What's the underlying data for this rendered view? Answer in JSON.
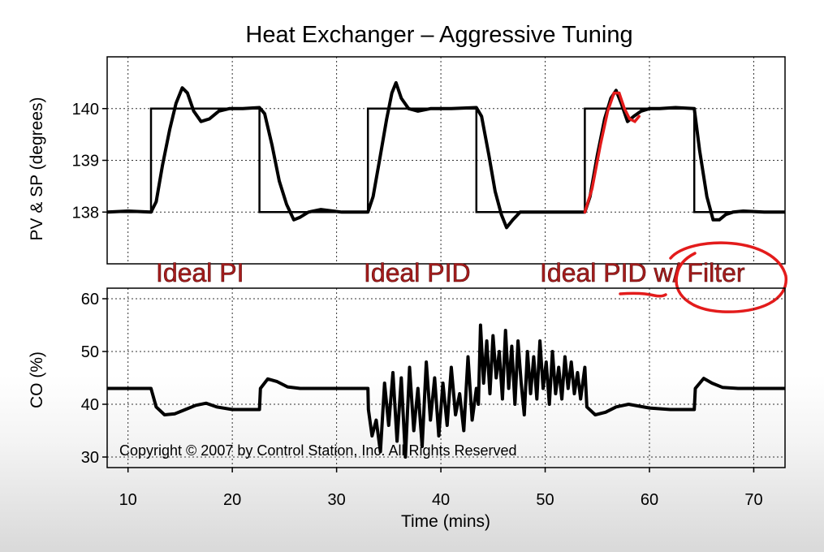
{
  "chart_data": {
    "type": "line",
    "title": "Heat Exchanger – Aggressive Tuning",
    "xlabel": "Time (mins)",
    "xlim": [
      8,
      73
    ],
    "xticks": [
      10,
      20,
      30,
      40,
      50,
      60,
      70
    ],
    "grid": true,
    "copyright": "Copyright © 2007 by Control Station, Inc. All Rights Reserved",
    "annotations": [
      "Ideal PI",
      "Ideal PID",
      "Ideal PID w/ Filter"
    ],
    "annotation_color": "#a61d1d",
    "highlight_color": "#e31b1b",
    "panels": [
      {
        "ylabel": "PV & SP (degrees)",
        "ylim": [
          137.0,
          141.0
        ],
        "yticks": [
          138,
          139,
          140
        ],
        "series": [
          {
            "kind": "setpoint",
            "x": [
              8,
              12.2,
              12.2,
              22.6,
              22.6,
              33.0,
              33.0,
              43.4,
              43.4,
              53.8,
              53.8,
              64.3,
              64.3,
              73
            ],
            "y": [
              138,
              138,
              140,
              140,
              138,
              138,
              140,
              140,
              138,
              138,
              140,
              140,
              138,
              138
            ]
          },
          {
            "kind": "process-variable",
            "x": [
              8,
              10,
              12.2,
              12.7,
              13.3,
              14.0,
              14.6,
              15.2,
              15.7,
              16.3,
              17.0,
              17.8,
              18.7,
              19.7,
              21.0,
              22.6,
              23.1,
              23.8,
              24.5,
              25.2,
              25.9,
              26.5,
              27.3,
              28.5,
              30.5,
              33.0,
              33.5,
              34.2,
              34.8,
              35.3,
              35.7,
              36.2,
              36.9,
              37.8,
              39.0,
              41.0,
              43.4,
              43.9,
              44.6,
              45.2,
              45.8,
              46.3,
              46.9,
              47.6,
              48.6,
              50.5,
              53.8,
              54.3,
              55.0,
              55.7,
              56.3,
              56.8,
              57.3,
              57.9,
              58.5,
              59.2,
              60.0,
              61.0,
              62.5,
              64.3,
              64.8,
              65.5,
              66.1,
              66.7,
              67.3,
              68.0,
              69.0,
              71.0,
              73
            ],
            "y": [
              138.0,
              138.02,
              138.0,
              138.2,
              138.9,
              139.6,
              140.1,
              140.4,
              140.3,
              139.95,
              139.75,
              139.8,
              139.95,
              140.0,
              140.0,
              140.02,
              139.9,
              139.3,
              138.6,
              138.15,
              137.85,
              137.9,
              138.0,
              138.05,
              138.0,
              138.0,
              138.3,
              139.1,
              139.8,
              140.3,
              140.5,
              140.2,
              140.0,
              139.95,
              140.0,
              140.0,
              140.02,
              139.85,
              139.1,
              138.4,
              137.95,
              137.7,
              137.85,
              138.0,
              138.0,
              138.0,
              138.0,
              138.3,
              139.1,
              139.8,
              140.2,
              140.35,
              140.1,
              139.75,
              139.85,
              139.95,
              140.0,
              140.0,
              140.02,
              140.0,
              139.2,
              138.3,
              137.85,
              137.85,
              137.95,
              138.0,
              138.02,
              138.0,
              138.0
            ]
          }
        ],
        "highlight": {
          "x": [
            53.8,
            54.5,
            55.3,
            56.0,
            56.6,
            57.1,
            57.6,
            58.1,
            58.6,
            59.0
          ],
          "y": [
            138.0,
            138.45,
            139.3,
            139.95,
            140.3,
            140.3,
            140.0,
            139.8,
            139.75,
            139.85
          ]
        }
      },
      {
        "ylabel": "CO (%)",
        "ylim": [
          28,
          62
        ],
        "yticks": [
          30,
          40,
          50,
          60
        ],
        "series": [
          {
            "kind": "controller-output",
            "x": [
              8,
              11,
              12.2,
              12.7,
              13.5,
              14.5,
              15.5,
              16.5,
              17.5,
              18.5,
              20,
              22.6,
              22.7,
              23.4,
              24.3,
              25.3,
              26.5,
              28,
              30,
              33.0,
              33.05,
              33.4,
              33.8,
              34.2,
              34.6,
              35.0,
              35.4,
              35.8,
              36.2,
              36.6,
              37.0,
              37.4,
              37.8,
              38.2,
              38.6,
              39.0,
              39.4,
              39.8,
              40.2,
              40.6,
              41.0,
              41.4,
              41.8,
              42.2,
              42.6,
              43.0,
              43.4,
              43.6,
              43.8,
              44.1,
              44.4,
              44.7,
              45.0,
              45.3,
              45.6,
              45.9,
              46.2,
              46.5,
              46.8,
              47.1,
              47.4,
              47.7,
              48.0,
              48.3,
              48.6,
              48.9,
              49.2,
              49.5,
              49.8,
              50.1,
              50.4,
              50.7,
              51.0,
              51.3,
              51.6,
              51.9,
              52.2,
              52.5,
              52.8,
              53.1,
              53.4,
              53.8,
              54.0,
              54.8,
              55.8,
              56.8,
              58,
              60,
              62,
              64.3,
              64.4,
              65.2,
              66.0,
              67.0,
              68.5,
              70,
              73
            ],
            "y": [
              43,
              43,
              43,
              39.5,
              38,
              38.2,
              39,
              39.8,
              40.2,
              39.5,
              39,
              39,
              43,
              44.8,
              44.3,
              43.3,
              43,
              43,
              43,
              43,
              39,
              34,
              37,
              31,
              44,
              36,
              46,
              33,
              45,
              30,
              47,
              35,
              43,
              32,
              48,
              37,
              45,
              34,
              44,
              36,
              47,
              38,
              42,
              35,
              49,
              37,
              43,
              40,
              55,
              44,
              52,
              42,
              53,
              45,
              50,
              41,
              54,
              43,
              51,
              40,
              52,
              44,
              38,
              50,
              42,
              49,
              41,
              52,
              43,
              48,
              40,
              50,
              42,
              47,
              41,
              49,
              43,
              48,
              42,
              46,
              41,
              47,
              39.5,
              38,
              38.5,
              39.5,
              40,
              39.3,
              39,
              39,
              43,
              44.9,
              44,
              43.2,
              43,
              43,
              43
            ]
          }
        ]
      }
    ]
  }
}
